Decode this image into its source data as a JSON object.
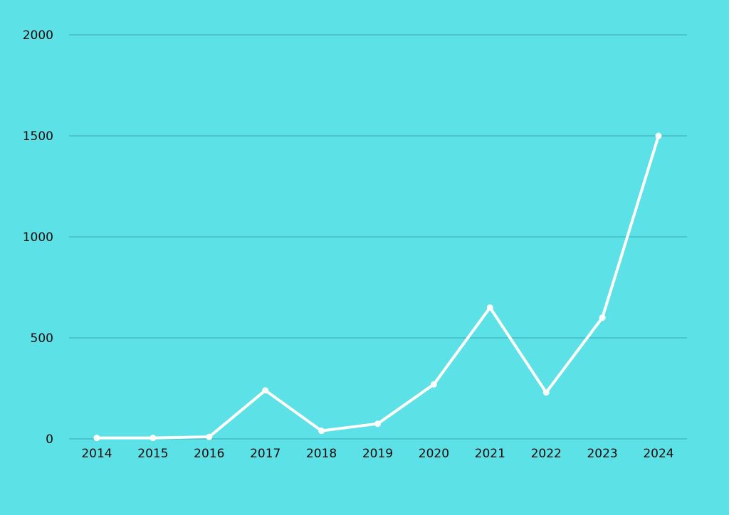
{
  "chart_data": {
    "type": "line",
    "title": "",
    "xlabel": "",
    "ylabel": "",
    "x": [
      "2014",
      "2015",
      "2016",
      "2017",
      "2018",
      "2019",
      "2020",
      "2021",
      "2022",
      "2023",
      "2024"
    ],
    "series": [
      {
        "values": [
          5,
          5,
          10,
          240,
          40,
          75,
          270,
          650,
          230,
          600,
          1500
        ]
      }
    ],
    "ylim": [
      0,
      2000
    ],
    "yticks": [
      0,
      500,
      1000,
      1500,
      2000
    ],
    "grid": true,
    "legend": "none",
    "colors": {
      "background": "#5ce1e6",
      "line": "#ffffff",
      "grid": "#3aa9ae",
      "text": "#0a0a0a"
    }
  }
}
